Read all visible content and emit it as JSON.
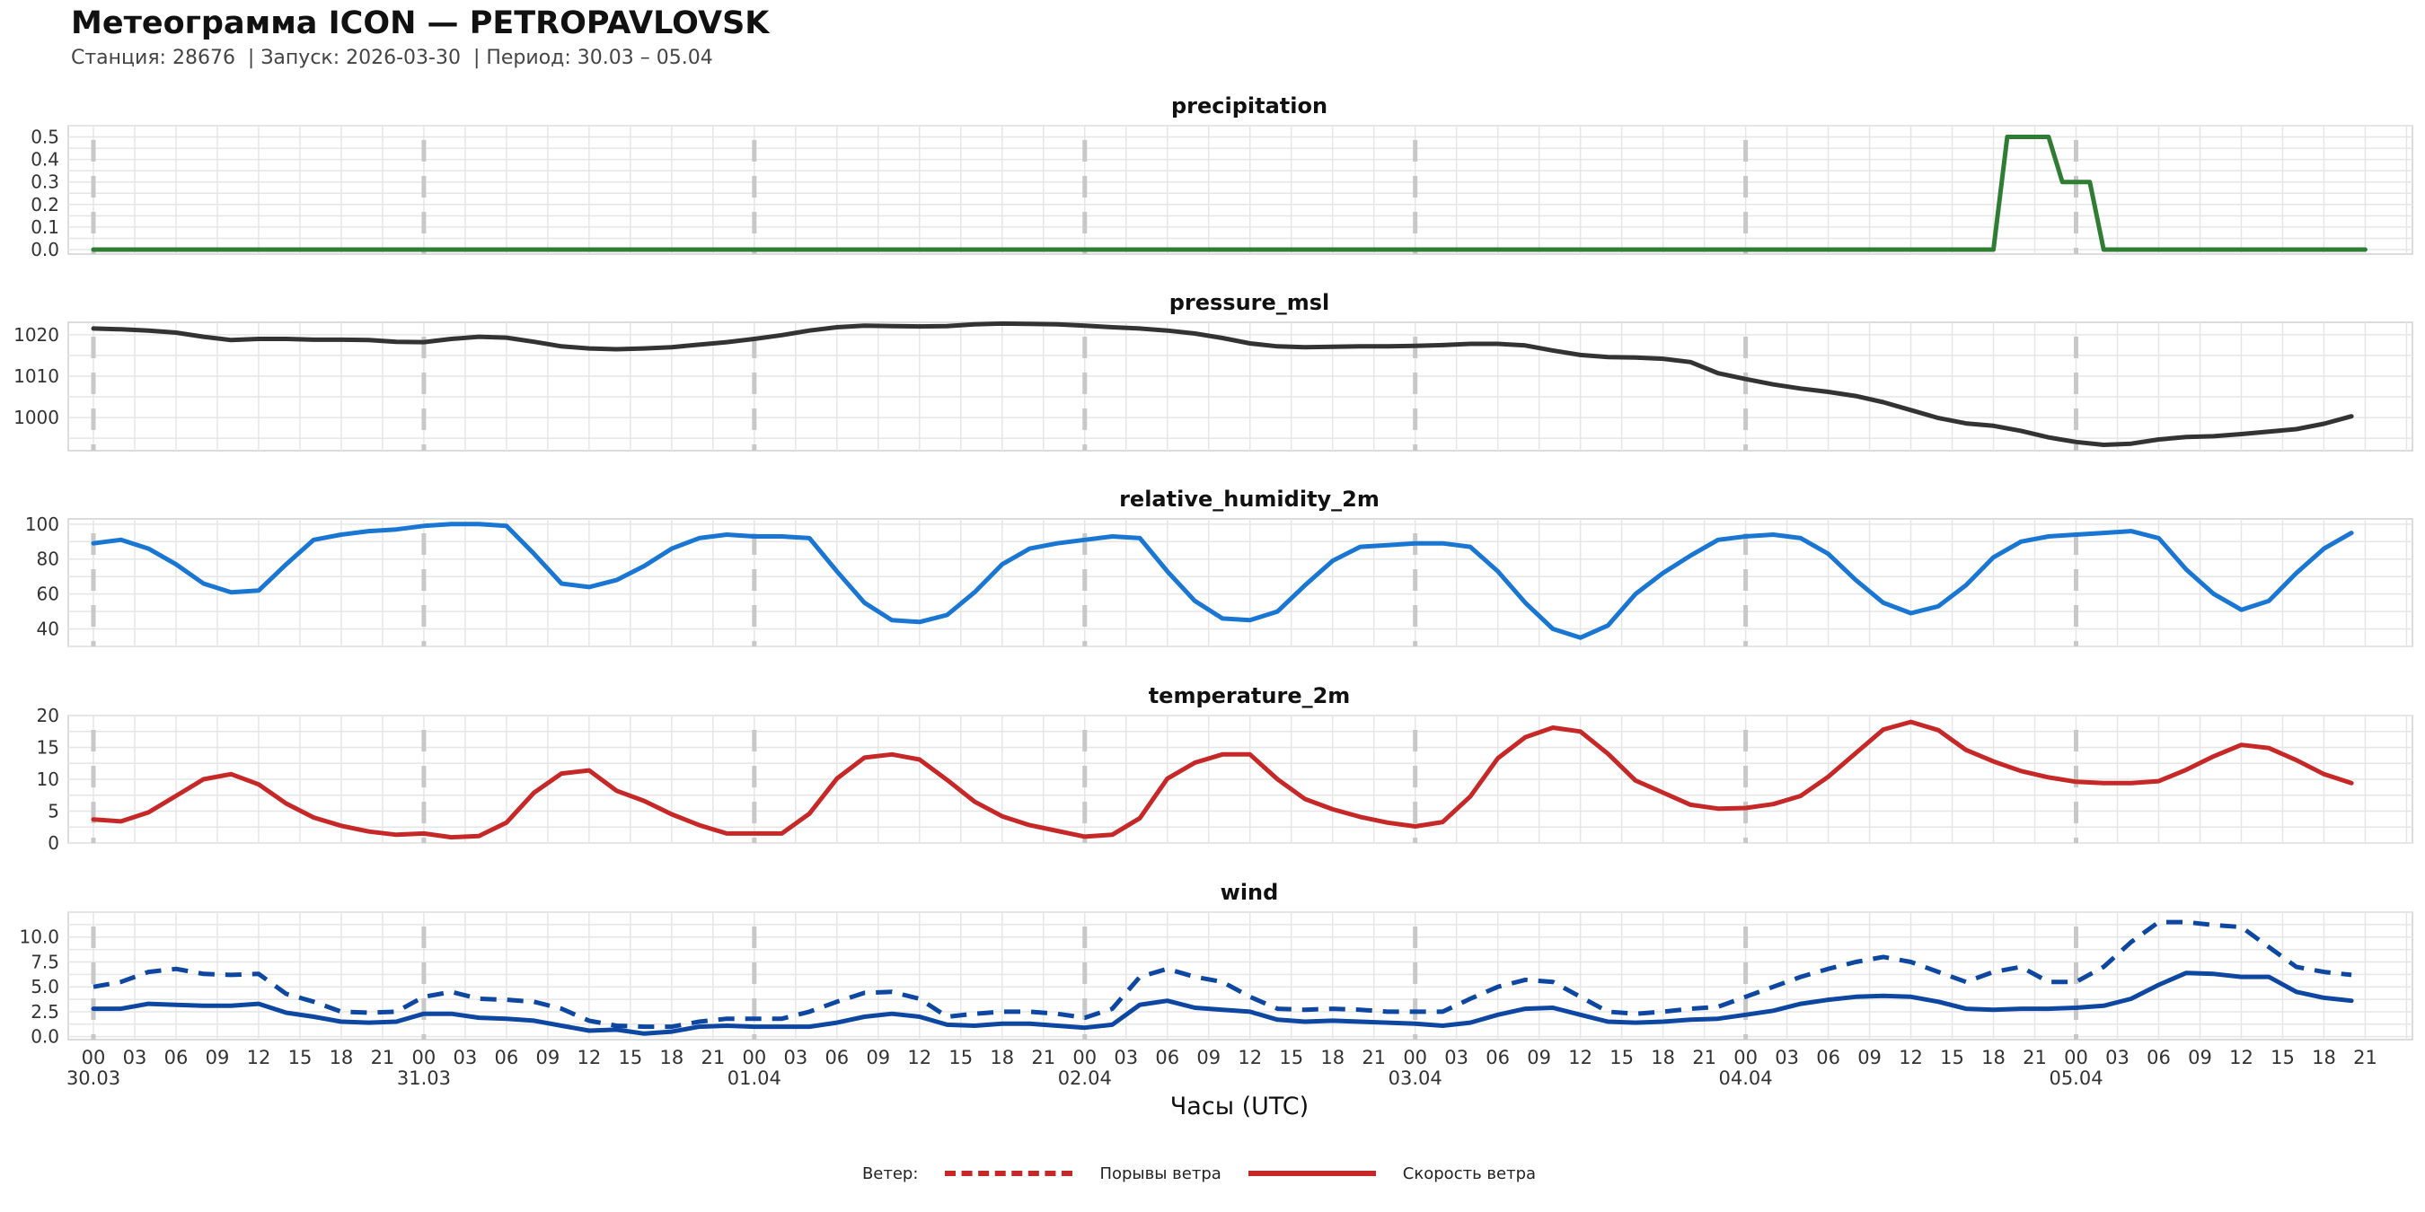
{
  "header": {
    "title": "Метеограмма ICON — PETROPAVLOVSK",
    "subtitle": "Станция: 28676  | Запуск: 2026-03-30  | Период: 30.03 – 05.04"
  },
  "x_axis": {
    "label": "Часы (UTC)",
    "hour_labels": [
      "00",
      "03",
      "06",
      "09",
      "12",
      "15",
      "18",
      "21"
    ],
    "day_labels": [
      "30.03",
      "31.03",
      "01.04",
      "02.04",
      "03.04",
      "04.04",
      "05.04"
    ]
  },
  "legend": {
    "title": "Ветер:",
    "items": [
      {
        "label": "Порывы ветра",
        "style": "dashed",
        "color": "#c62828"
      },
      {
        "label": "Скорость ветра",
        "style": "solid",
        "color": "#c62828"
      }
    ]
  },
  "chart_data": [
    {
      "type": "line",
      "title": "precipitation",
      "x_unit": "hours since 30.03 00 UTC",
      "ylim": [
        -0.02,
        0.55
      ],
      "yticks": [
        0.0,
        0.1,
        0.2,
        0.3,
        0.4,
        0.5
      ],
      "ytick_labels": [
        "0.0",
        "0.1",
        "0.2",
        "0.3",
        "0.4",
        "0.5"
      ],
      "grid": true,
      "series": [
        {
          "name": "precipitation",
          "color": "#2e7d32",
          "style": "solid",
          "x": [
            0,
            138,
            139,
            142,
            143,
            144,
            144.5,
            145,
            146,
            165
          ],
          "y": [
            0,
            0,
            0.5,
            0.5,
            0.3,
            0.3,
            0.3,
            0.3,
            0,
            0
          ]
        }
      ]
    },
    {
      "type": "line",
      "title": "pressure_msl",
      "ylim": [
        992,
        1023
      ],
      "yticks": [
        1000,
        1010,
        1020
      ],
      "ytick_labels": [
        "1000",
        "1010",
        "1020"
      ],
      "grid": true,
      "series": [
        {
          "name": "pressure_msl",
          "color": "#333333",
          "style": "solid",
          "x": [
            0,
            2,
            4,
            6,
            8,
            10,
            12,
            14,
            16,
            18,
            20,
            22,
            24,
            26,
            28,
            30,
            32,
            34,
            36,
            38,
            40,
            42,
            44,
            46,
            48,
            50,
            52,
            54,
            56,
            58,
            60,
            62,
            64,
            66,
            68,
            70,
            72,
            74,
            76,
            78,
            80,
            82,
            84,
            86,
            88,
            90,
            92,
            94,
            96,
            98,
            100,
            102,
            104,
            106,
            108,
            110,
            112,
            114,
            116,
            118,
            120,
            122,
            124,
            126,
            128,
            130,
            132,
            134,
            136,
            138,
            140,
            142,
            144,
            146,
            148,
            150,
            152,
            154,
            156,
            158,
            160,
            162,
            164
          ],
          "y": [
            1021.5,
            1021.3,
            1021,
            1020.5,
            1019.5,
            1018.7,
            1019,
            1019,
            1018.8,
            1018.8,
            1018.7,
            1018.3,
            1018.2,
            1019,
            1019.5,
            1019.3,
            1018.3,
            1017.2,
            1016.7,
            1016.5,
            1016.7,
            1017,
            1017.6,
            1018.2,
            1019,
            1019.9,
            1021,
            1021.8,
            1022.2,
            1022.1,
            1022,
            1022.1,
            1022.5,
            1022.7,
            1022.6,
            1022.5,
            1022.2,
            1021.8,
            1021.5,
            1021,
            1020.3,
            1019.2,
            1017.9,
            1017.2,
            1017,
            1017.1,
            1017.2,
            1017.2,
            1017.3,
            1017.5,
            1017.8,
            1017.8,
            1017.4,
            1016.2,
            1015.1,
            1014.6,
            1014.5,
            1014.2,
            1013.4,
            1010.7,
            1009.3,
            1008,
            1007,
            1006.2,
            1005.2,
            1003.7,
            1001.8,
            999.9,
            998.6,
            998,
            996.8,
            995.2,
            994.1,
            993.4,
            993.7,
            994.7,
            995.3,
            995.5,
            996,
            996.6,
            997.2,
            998.5,
            1000.3
          ]
        }
      ]
    },
    {
      "type": "line",
      "title": "relative_humidity_2m",
      "ylim": [
        30,
        103
      ],
      "yticks": [
        40,
        60,
        80,
        100
      ],
      "ytick_labels": [
        "40",
        "60",
        "80",
        "100"
      ],
      "grid": true,
      "series": [
        {
          "name": "relative_humidity_2m",
          "color": "#1976d2",
          "style": "solid",
          "x": [
            0,
            2,
            4,
            6,
            8,
            10,
            12,
            14,
            16,
            18,
            20,
            22,
            24,
            26,
            28,
            30,
            32,
            34,
            36,
            38,
            40,
            42,
            44,
            46,
            48,
            50,
            52,
            54,
            56,
            58,
            60,
            62,
            64,
            66,
            68,
            70,
            72,
            74,
            76,
            78,
            80,
            82,
            84,
            86,
            88,
            90,
            92,
            94,
            96,
            98,
            100,
            102,
            104,
            106,
            108,
            110,
            112,
            114,
            116,
            118,
            120,
            122,
            124,
            126,
            128,
            130,
            132,
            134,
            136,
            138,
            140,
            142,
            144,
            146,
            148,
            150,
            152,
            154,
            156,
            158,
            160,
            162,
            164
          ],
          "y": [
            89,
            91,
            86,
            77,
            66,
            61,
            62,
            77,
            91,
            94,
            96,
            97,
            99,
            100,
            100,
            99,
            83,
            66,
            64,
            68,
            76,
            86,
            92,
            94,
            93,
            93,
            92,
            73,
            55,
            45,
            44,
            48,
            61,
            77,
            86,
            89,
            91,
            93,
            92,
            73,
            56,
            46,
            45,
            50,
            65,
            79,
            87,
            88,
            89,
            89,
            87,
            73,
            55,
            40,
            35,
            42,
            60,
            72,
            82,
            91,
            93,
            94,
            92,
            83,
            68,
            55,
            49,
            53,
            65,
            81,
            90,
            93,
            94,
            95,
            96,
            92,
            74,
            60,
            51,
            56,
            72,
            86,
            95
          ]
        }
      ]
    },
    {
      "type": "line",
      "title": "temperature_2m",
      "ylim": [
        0,
        20
      ],
      "yticks": [
        0,
        5,
        10,
        15,
        20
      ],
      "ytick_labels": [
        "0",
        "5",
        "10",
        "15",
        "20"
      ],
      "grid": true,
      "series": [
        {
          "name": "temperature_2m",
          "color": "#c62828",
          "style": "solid",
          "x": [
            0,
            2,
            4,
            6,
            8,
            10,
            12,
            14,
            16,
            18,
            20,
            22,
            24,
            26,
            28,
            30,
            32,
            34,
            36,
            38,
            40,
            42,
            44,
            46,
            48,
            50,
            52,
            54,
            56,
            58,
            60,
            62,
            64,
            66,
            68,
            70,
            72,
            74,
            76,
            78,
            80,
            82,
            84,
            86,
            88,
            90,
            92,
            94,
            96,
            98,
            100,
            102,
            104,
            106,
            108,
            110,
            112,
            114,
            116,
            118,
            120,
            122,
            124,
            126,
            128,
            130,
            132,
            134,
            136,
            138,
            140,
            142,
            144,
            146,
            148,
            150,
            152,
            154,
            156,
            158,
            160,
            162,
            164
          ],
          "y": [
            3.7,
            3.4,
            4.8,
            7.4,
            10,
            10.8,
            9.2,
            6.2,
            4.0,
            2.7,
            1.8,
            1.3,
            1.5,
            0.9,
            1.1,
            3.2,
            7.9,
            10.9,
            11.4,
            8.2,
            6.6,
            4.5,
            2.8,
            1.5,
            1.5,
            1.5,
            4.6,
            10.1,
            13.4,
            13.9,
            13.1,
            9.9,
            6.5,
            4.2,
            2.8,
            1.9,
            1.0,
            1.3,
            3.9,
            10.1,
            12.6,
            13.9,
            13.9,
            10.0,
            6.9,
            5.3,
            4.1,
            3.2,
            2.6,
            3.3,
            7.3,
            13.3,
            16.6,
            18.1,
            17.5,
            14.0,
            9.8,
            7.9,
            6.0,
            5.4,
            5.5,
            6.1,
            7.4,
            10.4,
            14.1,
            17.8,
            19.0,
            17.7,
            14.6,
            12.8,
            11.3,
            10.3,
            9.6,
            9.4,
            9.4,
            9.7,
            11.5,
            13.6,
            15.4,
            14.9,
            13.0,
            10.8,
            9.4
          ]
        }
      ]
    },
    {
      "type": "line",
      "title": "wind",
      "ylim": [
        -0.3,
        12.5
      ],
      "yticks": [
        0.0,
        2.5,
        5.0,
        7.5,
        10.0
      ],
      "ytick_labels": [
        "0.0",
        "2.5",
        "5.0",
        "7.5",
        "10.0"
      ],
      "grid": true,
      "series": [
        {
          "name": "Порывы ветра",
          "color": "#0d47a1",
          "style": "dashed",
          "x": [
            0,
            2,
            4,
            6,
            8,
            10,
            12,
            14,
            16,
            18,
            20,
            22,
            24,
            26,
            28,
            30,
            32,
            34,
            36,
            38,
            40,
            42,
            44,
            46,
            48,
            50,
            52,
            54,
            56,
            58,
            60,
            62,
            64,
            66,
            68,
            70,
            72,
            74,
            76,
            78,
            80,
            82,
            84,
            86,
            88,
            90,
            92,
            94,
            96,
            98,
            100,
            102,
            104,
            106,
            108,
            110,
            112,
            114,
            116,
            118,
            120,
            122,
            124,
            126,
            128,
            130,
            132,
            134,
            136,
            138,
            140,
            142,
            144,
            146,
            148,
            150,
            152,
            154,
            156,
            158,
            160,
            162,
            164
          ],
          "y": [
            5.0,
            5.5,
            6.5,
            6.8,
            6.3,
            6.2,
            6.3,
            4.3,
            3.5,
            2.5,
            2.4,
            2.5,
            4.0,
            4.5,
            3.8,
            3.7,
            3.5,
            2.8,
            1.6,
            1.1,
            1.0,
            1.0,
            1.5,
            1.8,
            1.8,
            1.8,
            2.5,
            3.5,
            4.4,
            4.5,
            3.8,
            2.0,
            2.3,
            2.5,
            2.5,
            2.3,
            1.9,
            2.8,
            6.0,
            6.8,
            6.0,
            5.5,
            4.0,
            2.8,
            2.7,
            2.8,
            2.7,
            2.5,
            2.5,
            2.5,
            3.8,
            5.0,
            5.7,
            5.5,
            4.0,
            2.5,
            2.3,
            2.5,
            2.8,
            3.0,
            4.0,
            5.0,
            6.0,
            6.8,
            7.5,
            8.0,
            7.5,
            6.5,
            5.5,
            6.5,
            7.0,
            5.5,
            5.5,
            7.0,
            9.5,
            11.5,
            11.5,
            11.2,
            11.0,
            9.0,
            7.0,
            6.5,
            6.2
          ]
        },
        {
          "name": "Скорость ветра",
          "color": "#0d47a1",
          "style": "solid",
          "x": [
            0,
            2,
            4,
            6,
            8,
            10,
            12,
            14,
            16,
            18,
            20,
            22,
            24,
            26,
            28,
            30,
            32,
            34,
            36,
            38,
            40,
            42,
            44,
            46,
            48,
            50,
            52,
            54,
            56,
            58,
            60,
            62,
            64,
            66,
            68,
            70,
            72,
            74,
            76,
            78,
            80,
            82,
            84,
            86,
            88,
            90,
            92,
            94,
            96,
            98,
            100,
            102,
            104,
            106,
            108,
            110,
            112,
            114,
            116,
            118,
            120,
            122,
            124,
            126,
            128,
            130,
            132,
            134,
            136,
            138,
            140,
            142,
            144,
            146,
            148,
            150,
            152,
            154,
            156,
            158,
            160,
            162,
            164
          ],
          "y": [
            2.8,
            2.8,
            3.3,
            3.2,
            3.1,
            3.1,
            3.3,
            2.4,
            2.0,
            1.5,
            1.4,
            1.5,
            2.3,
            2.3,
            1.9,
            1.8,
            1.6,
            1.1,
            0.6,
            0.7,
            0.3,
            0.5,
            1.0,
            1.1,
            1.0,
            1.0,
            1.0,
            1.4,
            2.0,
            2.3,
            2.0,
            1.2,
            1.1,
            1.3,
            1.3,
            1.1,
            0.9,
            1.2,
            3.2,
            3.6,
            2.9,
            2.7,
            2.5,
            1.7,
            1.5,
            1.6,
            1.5,
            1.4,
            1.3,
            1.1,
            1.4,
            2.2,
            2.8,
            2.9,
            2.2,
            1.5,
            1.4,
            1.5,
            1.7,
            1.8,
            2.2,
            2.6,
            3.3,
            3.7,
            4.0,
            4.1,
            4.0,
            3.5,
            2.8,
            2.7,
            2.8,
            2.8,
            2.9,
            3.1,
            3.8,
            5.2,
            6.4,
            6.3,
            6.0,
            6.0,
            4.5,
            3.9,
            3.6
          ]
        }
      ]
    }
  ]
}
